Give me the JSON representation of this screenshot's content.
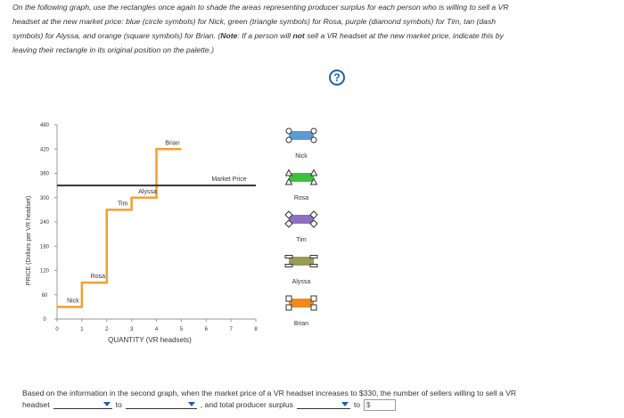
{
  "instructions": {
    "line1": "On the following graph, use the rectangles once again to shade the areas representing producer surplus for each person who is willing to sell a VR",
    "line2": "headset at the new market price: blue (circle symbols) for Nick, green (triangle symbols) for Rosa, purple (diamond symbols) for Tim, tan (dash",
    "line3_pre": "symbols) for Alyssa, and orange (square symbols) for Brian. (",
    "line3_note": "Note",
    "line3_mid": ": If a person will ",
    "line3_not": "not",
    "line3_post": " sell a VR headset at the new market price, indicate this by",
    "line4": "leaving their rectangle in its original position on the palette.)"
  },
  "help_label": "?",
  "chart_data": {
    "type": "line",
    "xlabel": "QUANTITY (VR headsets)",
    "ylabel": "PRICE (Dollars per VR headset)",
    "xlim": [
      0,
      8
    ],
    "ylim": [
      0,
      480
    ],
    "x_ticks": [
      "0",
      "1",
      "2",
      "3",
      "4",
      "5",
      "6",
      "7",
      "8"
    ],
    "y_ticks": [
      "0",
      "60",
      "120",
      "180",
      "240",
      "300",
      "360",
      "420",
      "480"
    ],
    "supply_steps": [
      {
        "name": "Nick",
        "from": 0,
        "to": 1,
        "price": 30
      },
      {
        "name": "Rosa",
        "from": 1,
        "to": 2,
        "price": 90
      },
      {
        "name": "Tim",
        "from": 2,
        "to": 3,
        "price": 270
      },
      {
        "name": "Alyssa",
        "from": 3,
        "to": 4,
        "price": 300
      },
      {
        "name": "Brian",
        "from": 4,
        "to": 5,
        "price": 420
      }
    ],
    "market_price": {
      "label": "Market Price",
      "value": 330
    },
    "line_color": "#f0a030",
    "market_line_color": "#333333"
  },
  "palette": [
    {
      "name": "Nick",
      "color": "#5b9bd5",
      "symbol": "circle"
    },
    {
      "name": "Rosa",
      "color": "#3fbf3f",
      "symbol": "triangle"
    },
    {
      "name": "Tim",
      "color": "#8e6fc1",
      "symbol": "diamond"
    },
    {
      "name": "Alyssa",
      "color": "#9a9a5a",
      "symbol": "dash"
    },
    {
      "name": "Brian",
      "color": "#f08a1c",
      "symbol": "square"
    }
  ],
  "question": {
    "text": "Based on the information in the second graph, when the market price of a VR headset increases to $330, the number of sellers willing to sell a VR",
    "line2_a": "headset",
    "line2_to": "to",
    "line2_b": ", and total producer surplus",
    "line2_to2": "to",
    "dollar": "$"
  }
}
